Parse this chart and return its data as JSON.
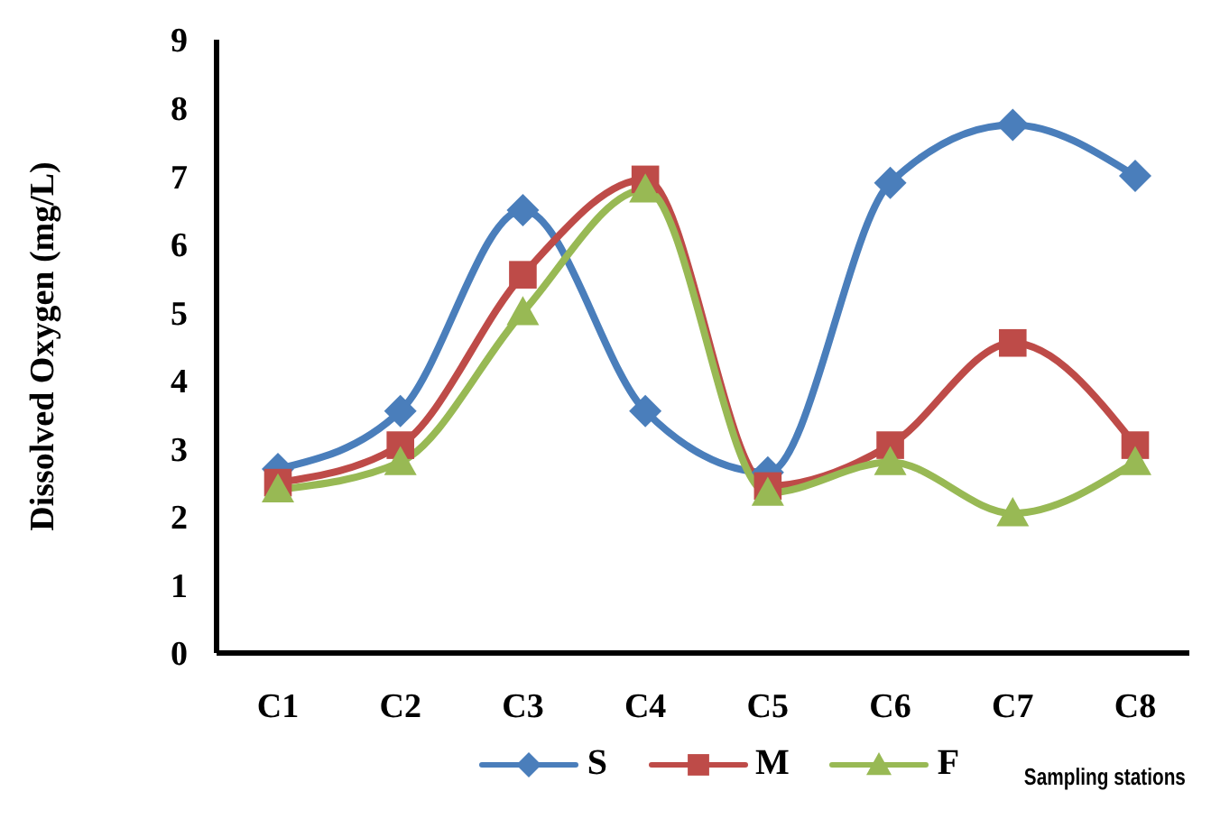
{
  "chart_data": {
    "type": "line",
    "xlabel": "Sampling stations",
    "ylabel": "Dissolved Oxygen (mg/L)",
    "categories": [
      "C1",
      "C2",
      "C3",
      "C4",
      "C5",
      "C6",
      "C7",
      "C8"
    ],
    "series": [
      {
        "name": "S",
        "color": "#4a7ebb",
        "marker": "diamond",
        "values": [
          2.7,
          3.55,
          6.5,
          3.55,
          2.65,
          6.9,
          7.75,
          7.0
        ]
      },
      {
        "name": "M",
        "color": "#be4b48",
        "marker": "square",
        "values": [
          2.5,
          3.05,
          5.55,
          6.95,
          2.45,
          3.05,
          4.55,
          3.05
        ]
      },
      {
        "name": "F",
        "color": "#98b954",
        "marker": "triangle",
        "values": [
          2.4,
          2.8,
          5.0,
          6.8,
          2.35,
          2.8,
          2.05,
          2.8
        ]
      }
    ],
    "ylim": [
      0,
      9
    ],
    "yticks": [
      0,
      1,
      2,
      3,
      4,
      5,
      6,
      7,
      8,
      9
    ],
    "grid": false,
    "legend": "bottom"
  }
}
